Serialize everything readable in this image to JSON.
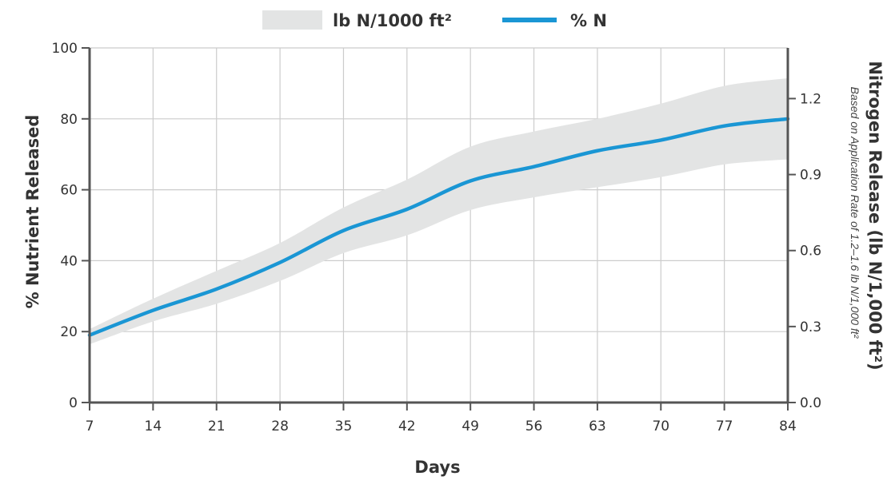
{
  "chart_data": {
    "type": "line",
    "legend": {
      "band_label": "lb N/1000 ft²",
      "line_label": "% N",
      "placement": "top-center"
    },
    "x": [
      7,
      14,
      21,
      28,
      35,
      42,
      49,
      56,
      63,
      70,
      77,
      84
    ],
    "xticks": [
      "7",
      "14",
      "21",
      "28",
      "35",
      "42",
      "49",
      "56",
      "63",
      "70",
      "77",
      "84"
    ],
    "xlabel": "Days",
    "ylabel": "% Nutrient Released",
    "ylim": [
      0,
      100
    ],
    "yticks": [
      "0",
      "20",
      "40",
      "60",
      "80",
      "100"
    ],
    "y2label": "Nitrogen Release (lb N/1,000 ft²)",
    "y2note": "Based on Application Rate of 1.2–1.6 lb N/1,000 ft²",
    "y2lim": [
      0,
      1.4
    ],
    "y2ticks": [
      "0.0",
      "0.3",
      "0.6",
      "0.9",
      "1.2"
    ],
    "grid": true,
    "series": [
      {
        "name": "% N",
        "type": "line",
        "color": "#1a96d4",
        "values": [
          19,
          26,
          32,
          39.5,
          48.5,
          54.5,
          62.5,
          66.5,
          71,
          74,
          78,
          80
        ]
      },
      {
        "name": "lb N/1000 ft²",
        "type": "band",
        "color": "#e3e4e4",
        "upper": [
          0.29,
          0.41,
          0.52,
          0.63,
          0.77,
          0.88,
          1.01,
          1.07,
          1.12,
          1.18,
          1.25,
          1.28
        ],
        "lower": [
          0.23,
          0.32,
          0.39,
          0.48,
          0.59,
          0.66,
          0.76,
          0.81,
          0.85,
          0.89,
          0.94,
          0.96
        ]
      }
    ]
  }
}
